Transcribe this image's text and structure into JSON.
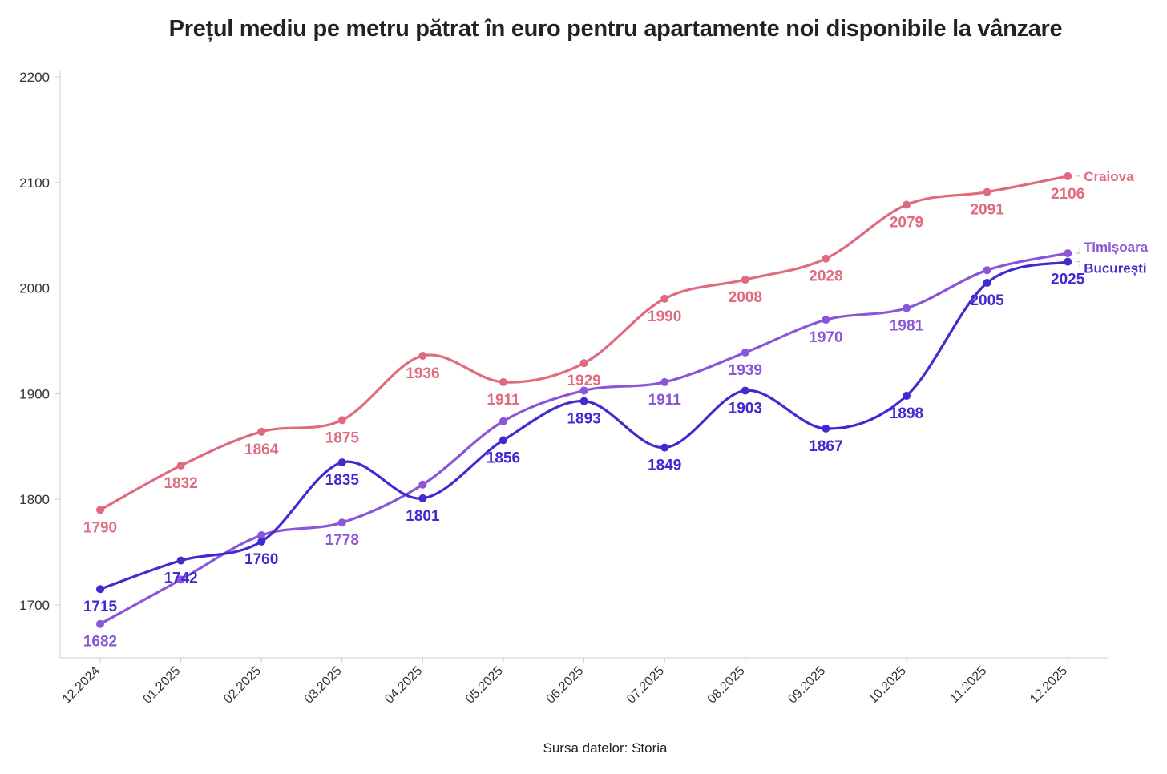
{
  "chart_data": {
    "type": "line",
    "title": "Prețul mediu pe metru pătrat în euro pentru apartamente noi disponibile la vânzare",
    "source": "Sursa datelor: Storia",
    "xlabel": "",
    "ylabel": "",
    "ylim": [
      1650,
      2200
    ],
    "yticks": [
      1700,
      1800,
      1900,
      2000,
      2100,
      2200
    ],
    "grid": false,
    "categories": [
      "12.2024",
      "01.2025",
      "02.2025",
      "03.2025",
      "04.2025",
      "05.2025",
      "06.2025",
      "07.2025",
      "08.2025",
      "09.2025",
      "10.2025",
      "11.2025",
      "12.2025"
    ],
    "series": [
      {
        "name": "Craiova",
        "color": "#e06b7e",
        "values": [
          1790,
          1832,
          1864,
          1875,
          1936,
          1911,
          1929,
          1990,
          2008,
          2028,
          2079,
          2091,
          2106
        ],
        "labels": [
          "1790",
          "1832",
          "1864",
          "1875",
          "1936",
          "1911",
          "1929",
          "1990",
          "2008",
          "2028",
          "2079",
          "2091",
          "2106"
        ]
      },
      {
        "name": "Timișoara",
        "color": "#8a55d8",
        "values": [
          1682,
          1724,
          1766,
          1778,
          1814,
          1874,
          1903,
          1911,
          1939,
          1970,
          1981,
          2017,
          2033
        ],
        "labels": [
          "1682",
          "",
          "",
          "1778",
          "",
          "",
          "",
          "1911",
          "1939",
          "1970",
          "1981",
          "",
          ""
        ]
      },
      {
        "name": "București",
        "color": "#3f2bd0",
        "values": [
          1715,
          1742,
          1760,
          1835,
          1801,
          1856,
          1893,
          1849,
          1903,
          1867,
          1898,
          2005,
          2025
        ],
        "labels": [
          "1715",
          "1742",
          "1760",
          "1835",
          "1801",
          "1856",
          "1893",
          "1849",
          "1903",
          "1867",
          "1898",
          "2005",
          "2025"
        ]
      }
    ]
  }
}
